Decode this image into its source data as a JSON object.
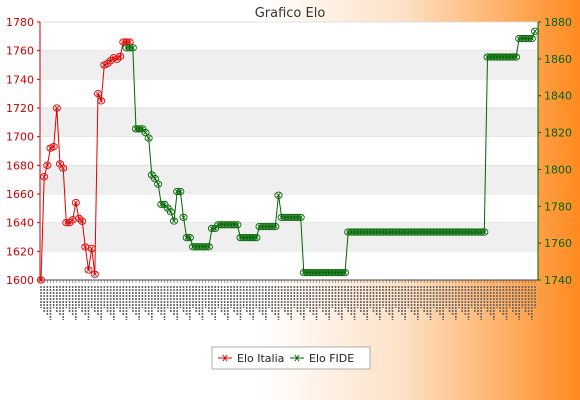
{
  "chart_data": {
    "type": "line",
    "title": "Grafico Elo",
    "legend_position": "bottom",
    "grid": true,
    "y_left": {
      "range": [
        1600,
        1780
      ],
      "ticks": [
        1600,
        1620,
        1640,
        1660,
        1680,
        1700,
        1720,
        1740,
        1760,
        1780
      ],
      "color": "#cc0000"
    },
    "y_right": {
      "range": [
        1740,
        1880
      ],
      "ticks": [
        1740,
        1760,
        1780,
        1800,
        1820,
        1840,
        1860,
        1880
      ],
      "color": "#006600"
    },
    "x_count": 120,
    "series": [
      {
        "name": "Elo Italia",
        "axis": "left",
        "color": "#e00000",
        "points": [
          [
            0,
            1600
          ],
          [
            1,
            1672
          ],
          [
            2,
            1680
          ],
          [
            3,
            1692
          ],
          [
            4,
            1693
          ],
          [
            5,
            1720
          ],
          [
            6,
            1681
          ],
          [
            7,
            1678
          ],
          [
            8,
            1640
          ],
          [
            9,
            1640
          ],
          [
            10,
            1642
          ],
          [
            11,
            1654
          ],
          [
            12,
            1643
          ],
          [
            13,
            1641
          ],
          [
            14,
            1623
          ],
          [
            15,
            1607
          ],
          [
            16,
            1622
          ],
          [
            17,
            1604
          ],
          [
            18,
            1730
          ],
          [
            19,
            1725
          ],
          [
            20,
            1750
          ],
          [
            21,
            1751
          ],
          [
            22,
            1753
          ],
          [
            23,
            1755
          ],
          [
            24,
            1754
          ],
          [
            25,
            1756
          ],
          [
            26,
            1766
          ],
          [
            27,
            1766
          ],
          [
            28,
            1766
          ]
        ]
      },
      {
        "name": "Elo FIDE",
        "axis": "right",
        "color": "#006600",
        "points": [
          [
            27,
            1866
          ],
          [
            28,
            1866
          ],
          [
            29,
            1866
          ],
          [
            30,
            1822
          ],
          [
            31,
            1822
          ],
          [
            32,
            1822
          ],
          [
            33,
            1820
          ],
          [
            34,
            1817
          ],
          [
            35,
            1797
          ],
          [
            36,
            1795
          ],
          [
            37,
            1792
          ],
          [
            38,
            1781
          ],
          [
            39,
            1781
          ],
          [
            40,
            1779
          ],
          [
            41,
            1777
          ],
          [
            42,
            1772
          ],
          [
            43,
            1788
          ],
          [
            44,
            1788
          ],
          [
            45,
            1774
          ],
          [
            46,
            1763
          ],
          [
            47,
            1763
          ],
          [
            48,
            1758
          ],
          [
            49,
            1758
          ],
          [
            50,
            1758
          ],
          [
            51,
            1758
          ],
          [
            52,
            1758
          ],
          [
            53,
            1758
          ],
          [
            54,
            1768
          ],
          [
            55,
            1768
          ],
          [
            56,
            1770
          ],
          [
            57,
            1770
          ],
          [
            58,
            1770
          ],
          [
            59,
            1770
          ],
          [
            60,
            1770
          ],
          [
            61,
            1770
          ],
          [
            62,
            1770
          ],
          [
            63,
            1763
          ],
          [
            64,
            1763
          ],
          [
            65,
            1763
          ],
          [
            66,
            1763
          ],
          [
            67,
            1763
          ],
          [
            68,
            1763
          ],
          [
            69,
            1769
          ],
          [
            70,
            1769
          ],
          [
            71,
            1769
          ],
          [
            72,
            1769
          ],
          [
            73,
            1769
          ],
          [
            74,
            1769
          ],
          [
            75,
            1786
          ],
          [
            76,
            1774
          ],
          [
            77,
            1774
          ],
          [
            78,
            1774
          ],
          [
            79,
            1774
          ],
          [
            80,
            1774
          ],
          [
            81,
            1774
          ],
          [
            82,
            1774
          ],
          [
            83,
            1744
          ],
          [
            84,
            1744
          ],
          [
            85,
            1744
          ],
          [
            86,
            1744
          ],
          [
            87,
            1744
          ],
          [
            88,
            1744
          ],
          [
            89,
            1744
          ],
          [
            90,
            1744
          ],
          [
            91,
            1744
          ],
          [
            92,
            1744
          ],
          [
            93,
            1744
          ],
          [
            94,
            1744
          ],
          [
            95,
            1744
          ],
          [
            96,
            1744
          ],
          [
            97,
            1766
          ],
          [
            98,
            1766
          ],
          [
            99,
            1766
          ],
          [
            100,
            1766
          ],
          [
            101,
            1766
          ],
          [
            102,
            1766
          ],
          [
            103,
            1766
          ],
          [
            104,
            1766
          ],
          [
            105,
            1766
          ],
          [
            106,
            1766
          ],
          [
            107,
            1766
          ],
          [
            108,
            1766
          ],
          [
            109,
            1766
          ],
          [
            110,
            1766
          ],
          [
            111,
            1766
          ],
          [
            112,
            1766
          ],
          [
            113,
            1766
          ],
          [
            114,
            1766
          ],
          [
            115,
            1766
          ],
          [
            116,
            1766
          ],
          [
            117,
            1766
          ],
          [
            118,
            1766
          ],
          [
            119,
            1766
          ],
          [
            120,
            1766
          ],
          [
            121,
            1766
          ],
          [
            122,
            1766
          ],
          [
            123,
            1766
          ],
          [
            124,
            1766
          ],
          [
            125,
            1766
          ],
          [
            126,
            1766
          ],
          [
            127,
            1766
          ],
          [
            128,
            1766
          ],
          [
            129,
            1766
          ],
          [
            130,
            1766
          ],
          [
            131,
            1766
          ],
          [
            132,
            1766
          ],
          [
            133,
            1766
          ],
          [
            134,
            1766
          ],
          [
            135,
            1766
          ],
          [
            136,
            1766
          ],
          [
            137,
            1766
          ],
          [
            138,
            1766
          ],
          [
            139,
            1766
          ],
          [
            140,
            1766
          ],
          [
            141,
            1861
          ],
          [
            142,
            1861
          ],
          [
            143,
            1861
          ],
          [
            144,
            1861
          ],
          [
            145,
            1861
          ],
          [
            146,
            1861
          ],
          [
            147,
            1861
          ],
          [
            148,
            1861
          ],
          [
            149,
            1861
          ],
          [
            150,
            1861
          ],
          [
            151,
            1871
          ],
          [
            152,
            1871
          ],
          [
            153,
            1871
          ],
          [
            154,
            1871
          ],
          [
            155,
            1871
          ],
          [
            156,
            1875
          ]
        ]
      }
    ]
  }
}
